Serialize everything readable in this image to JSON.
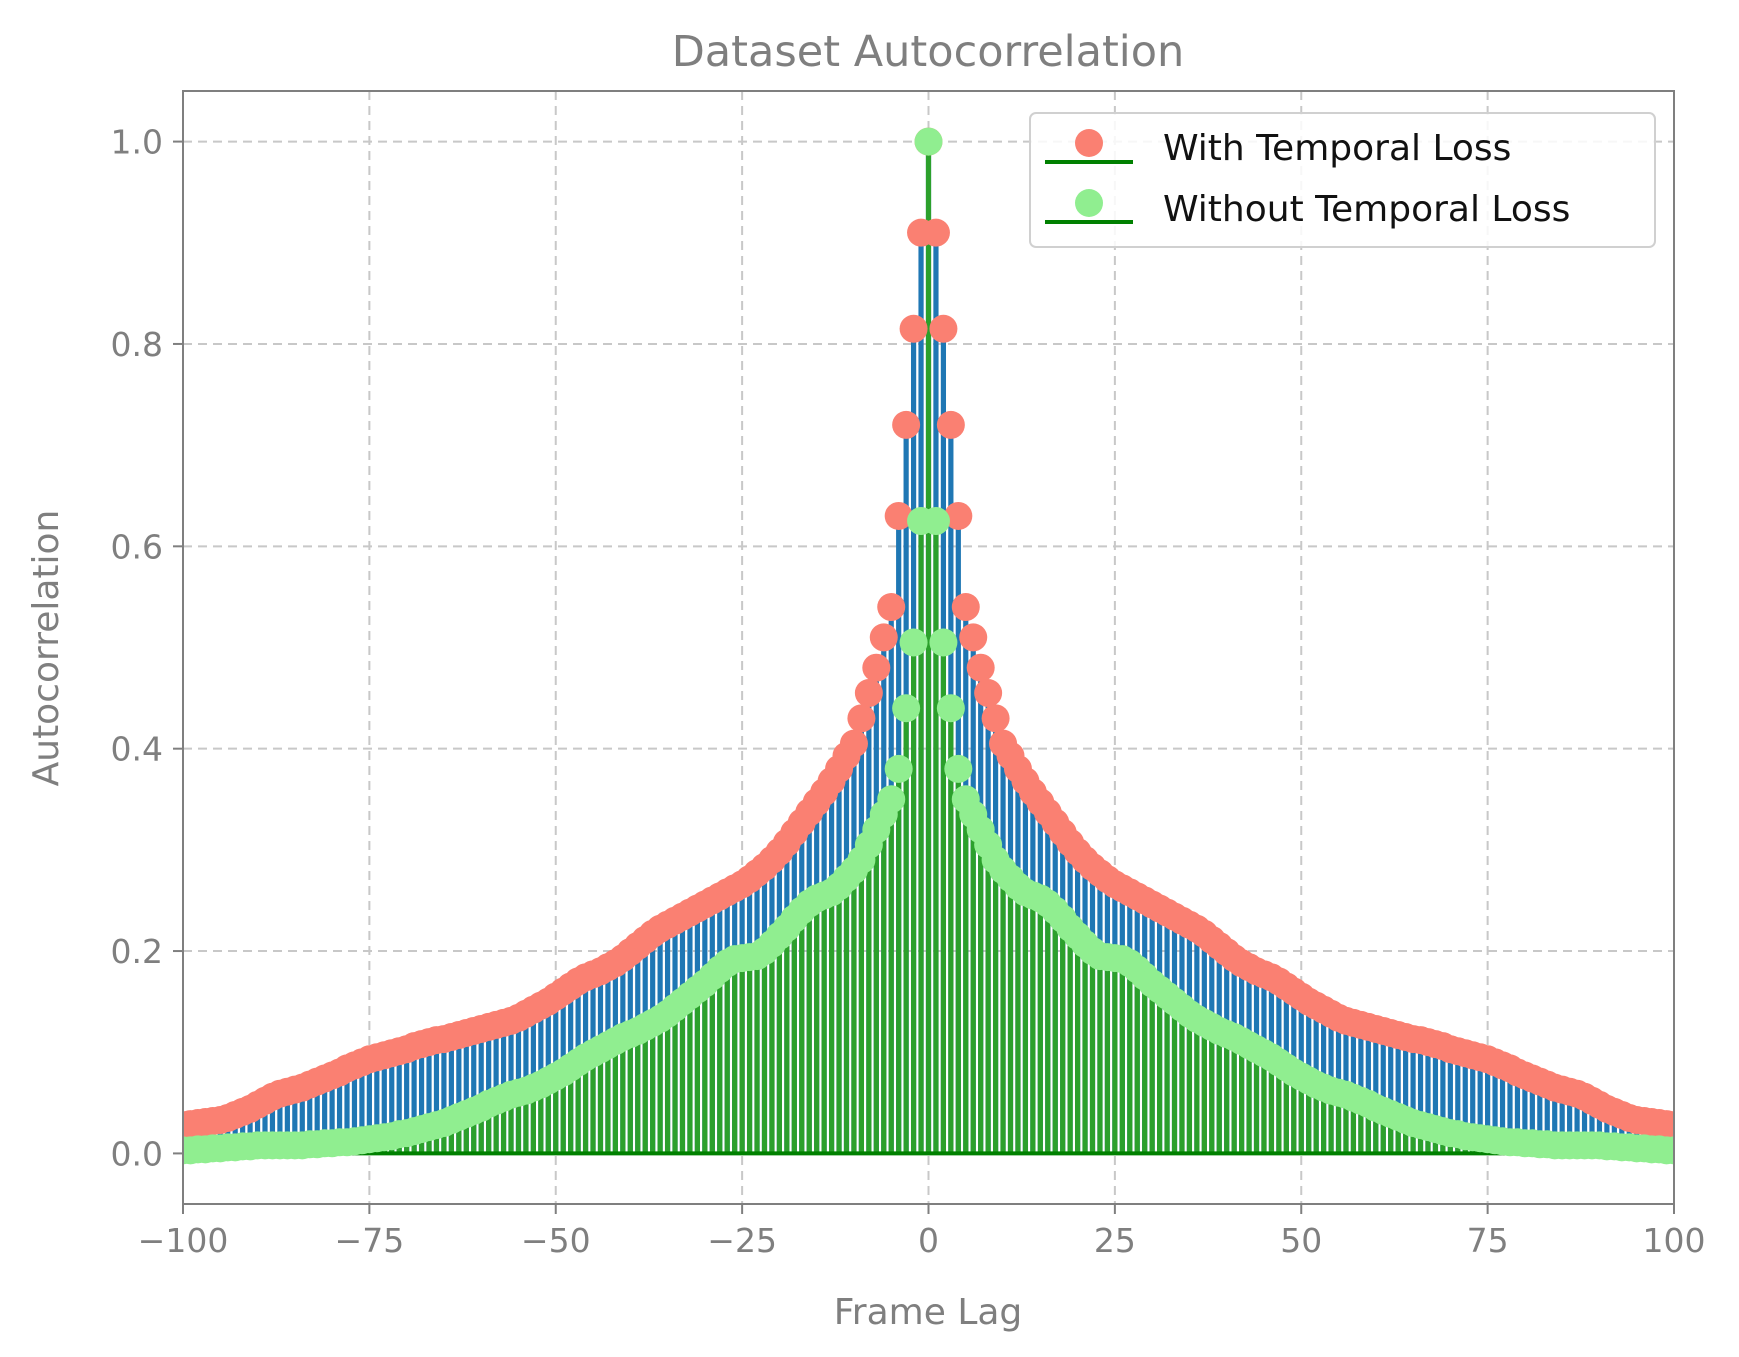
{
  "colors": {
    "with_stem": "#1f77b4",
    "with_marker": "#fa8072",
    "without_stem": "#2ca02c",
    "without_marker": "#90ee90",
    "baseline": "#008000",
    "axis": "#7f7f7f",
    "grid": "#c8c8c8"
  },
  "chart_data": {
    "type": "stem",
    "title": "Dataset Autocorrelation",
    "xlabel": "Frame Lag",
    "ylabel": "Autocorrelation",
    "xlim": [
      -100,
      100
    ],
    "ylim": [
      -0.05,
      1.05
    ],
    "x_ticks": [
      -100,
      -75,
      -50,
      -25,
      0,
      25,
      50,
      75,
      100
    ],
    "x_tick_labels": [
      "−100",
      "−75",
      "−50",
      "−25",
      "0",
      "25",
      "50",
      "75",
      "100"
    ],
    "y_ticks": [
      0.0,
      0.2,
      0.4,
      0.6,
      0.8,
      1.0
    ],
    "y_tick_labels": [
      "0.0",
      "0.2",
      "0.4",
      "0.6",
      "0.8",
      "1.0"
    ],
    "grid": true,
    "legend_position": "top-right",
    "x": [
      -100,
      -99,
      -98,
      -97,
      -96,
      -95,
      -94,
      -93,
      -92,
      -91,
      -90,
      -89,
      -88,
      -87,
      -86,
      -85,
      -84,
      -83,
      -82,
      -81,
      -80,
      -79,
      -78,
      -77,
      -76,
      -75,
      -74,
      -73,
      -72,
      -71,
      -70,
      -69,
      -68,
      -67,
      -66,
      -65,
      -64,
      -63,
      -62,
      -61,
      -60,
      -59,
      -58,
      -57,
      -56,
      -55,
      -54,
      -53,
      -52,
      -51,
      -50,
      -49,
      -48,
      -47,
      -46,
      -45,
      -44,
      -43,
      -42,
      -41,
      -40,
      -39,
      -38,
      -37,
      -36,
      -35,
      -34,
      -33,
      -32,
      -31,
      -30,
      -29,
      -28,
      -27,
      -26,
      -25,
      -24,
      -23,
      -22,
      -21,
      -20,
      -19,
      -18,
      -17,
      -16,
      -15,
      -14,
      -13,
      -12,
      -11,
      -10,
      -9,
      -8,
      -7,
      -6,
      -5,
      -4,
      -3,
      -2,
      -1,
      0,
      1,
      2,
      3,
      4,
      5,
      6,
      7,
      8,
      9,
      10,
      11,
      12,
      13,
      14,
      15,
      16,
      17,
      18,
      19,
      20,
      21,
      22,
      23,
      24,
      25,
      26,
      27,
      28,
      29,
      30,
      31,
      32,
      33,
      34,
      35,
      36,
      37,
      38,
      39,
      40,
      41,
      42,
      43,
      44,
      45,
      46,
      47,
      48,
      49,
      50,
      51,
      52,
      53,
      54,
      55,
      56,
      57,
      58,
      59,
      60,
      61,
      62,
      63,
      64,
      65,
      66,
      67,
      68,
      69,
      70,
      71,
      72,
      73,
      74,
      75,
      76,
      77,
      78,
      79,
      80,
      81,
      82,
      83,
      84,
      85,
      86,
      87,
      88,
      89,
      90,
      91,
      92,
      93,
      94,
      95,
      96,
      97,
      98,
      99,
      100
    ],
    "series": [
      {
        "name": "With Temporal Loss",
        "values": [
          0.028,
          0.029,
          0.03,
          0.031,
          0.032,
          0.033,
          0.035,
          0.038,
          0.041,
          0.044,
          0.048,
          0.052,
          0.056,
          0.059,
          0.061,
          0.063,
          0.065,
          0.068,
          0.071,
          0.074,
          0.077,
          0.08,
          0.084,
          0.087,
          0.09,
          0.093,
          0.095,
          0.097,
          0.099,
          0.101,
          0.103,
          0.106,
          0.108,
          0.11,
          0.112,
          0.113,
          0.115,
          0.117,
          0.119,
          0.121,
          0.123,
          0.125,
          0.127,
          0.129,
          0.131,
          0.134,
          0.138,
          0.142,
          0.146,
          0.15,
          0.155,
          0.16,
          0.165,
          0.17,
          0.174,
          0.177,
          0.18,
          0.184,
          0.188,
          0.193,
          0.199,
          0.205,
          0.211,
          0.217,
          0.222,
          0.226,
          0.23,
          0.234,
          0.238,
          0.242,
          0.246,
          0.25,
          0.254,
          0.258,
          0.262,
          0.266,
          0.271,
          0.277,
          0.283,
          0.29,
          0.298,
          0.307,
          0.317,
          0.327,
          0.337,
          0.347,
          0.357,
          0.368,
          0.38,
          0.393,
          0.405,
          0.43,
          0.455,
          0.48,
          0.51,
          0.54,
          0.63,
          0.72,
          0.815,
          0.91,
          1.0,
          0.91,
          0.815,
          0.72,
          0.63,
          0.54,
          0.51,
          0.48,
          0.455,
          0.43,
          0.405,
          0.393,
          0.38,
          0.368,
          0.357,
          0.347,
          0.337,
          0.327,
          0.317,
          0.307,
          0.298,
          0.29,
          0.283,
          0.277,
          0.271,
          0.266,
          0.262,
          0.258,
          0.254,
          0.25,
          0.246,
          0.242,
          0.238,
          0.234,
          0.23,
          0.226,
          0.222,
          0.217,
          0.211,
          0.205,
          0.199,
          0.193,
          0.188,
          0.184,
          0.18,
          0.177,
          0.174,
          0.17,
          0.165,
          0.16,
          0.155,
          0.15,
          0.146,
          0.142,
          0.138,
          0.134,
          0.131,
          0.129,
          0.127,
          0.125,
          0.123,
          0.121,
          0.119,
          0.117,
          0.115,
          0.113,
          0.112,
          0.11,
          0.108,
          0.106,
          0.103,
          0.101,
          0.099,
          0.097,
          0.095,
          0.093,
          0.09,
          0.087,
          0.084,
          0.08,
          0.077,
          0.074,
          0.071,
          0.068,
          0.065,
          0.063,
          0.061,
          0.059,
          0.056,
          0.052,
          0.048,
          0.044,
          0.041,
          0.038,
          0.035,
          0.033,
          0.032,
          0.031,
          0.03,
          0.029,
          0.028
        ]
      },
      {
        "name": "Without Temporal Loss",
        "values": [
          0.003,
          0.003,
          0.004,
          0.004,
          0.005,
          0.005,
          0.006,
          0.006,
          0.007,
          0.007,
          0.008,
          0.008,
          0.008,
          0.008,
          0.008,
          0.008,
          0.008,
          0.009,
          0.009,
          0.01,
          0.01,
          0.011,
          0.011,
          0.012,
          0.013,
          0.014,
          0.015,
          0.016,
          0.017,
          0.019,
          0.02,
          0.022,
          0.024,
          0.026,
          0.028,
          0.03,
          0.033,
          0.036,
          0.039,
          0.042,
          0.045,
          0.049,
          0.052,
          0.055,
          0.058,
          0.06,
          0.062,
          0.065,
          0.068,
          0.072,
          0.076,
          0.08,
          0.085,
          0.09,
          0.095,
          0.099,
          0.103,
          0.107,
          0.111,
          0.115,
          0.118,
          0.121,
          0.125,
          0.129,
          0.133,
          0.138,
          0.144,
          0.15,
          0.156,
          0.162,
          0.168,
          0.175,
          0.182,
          0.188,
          0.192,
          0.193,
          0.194,
          0.195,
          0.2,
          0.207,
          0.215,
          0.223,
          0.232,
          0.24,
          0.247,
          0.252,
          0.255,
          0.258,
          0.264,
          0.272,
          0.28,
          0.29,
          0.305,
          0.32,
          0.335,
          0.35,
          0.38,
          0.44,
          0.505,
          0.625,
          1.0,
          0.625,
          0.505,
          0.44,
          0.38,
          0.35,
          0.335,
          0.32,
          0.305,
          0.29,
          0.28,
          0.272,
          0.264,
          0.258,
          0.255,
          0.252,
          0.247,
          0.24,
          0.232,
          0.223,
          0.215,
          0.207,
          0.2,
          0.195,
          0.194,
          0.193,
          0.192,
          0.188,
          0.182,
          0.175,
          0.168,
          0.162,
          0.156,
          0.15,
          0.144,
          0.138,
          0.133,
          0.129,
          0.125,
          0.121,
          0.118,
          0.115,
          0.111,
          0.107,
          0.103,
          0.099,
          0.095,
          0.09,
          0.085,
          0.08,
          0.076,
          0.072,
          0.068,
          0.065,
          0.062,
          0.06,
          0.058,
          0.055,
          0.052,
          0.049,
          0.045,
          0.042,
          0.039,
          0.036,
          0.033,
          0.03,
          0.028,
          0.026,
          0.024,
          0.022,
          0.02,
          0.019,
          0.017,
          0.016,
          0.015,
          0.014,
          0.013,
          0.012,
          0.011,
          0.011,
          0.01,
          0.01,
          0.009,
          0.009,
          0.008,
          0.008,
          0.008,
          0.008,
          0.008,
          0.008,
          0.008,
          0.007,
          0.007,
          0.006,
          0.006,
          0.005,
          0.005,
          0.004,
          0.004,
          0.003,
          0.003
        ]
      }
    ]
  }
}
